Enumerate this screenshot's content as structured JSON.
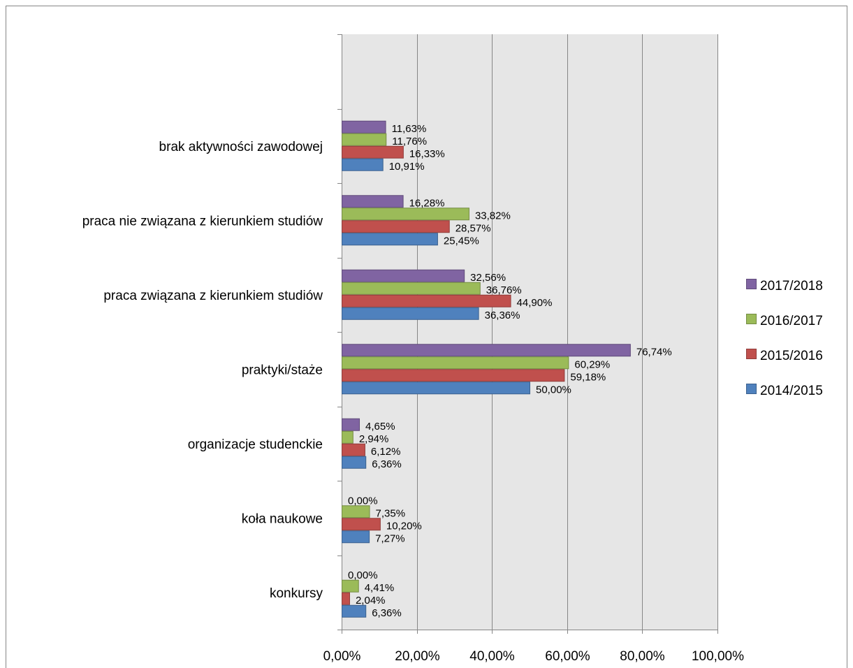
{
  "chart_data": {
    "type": "bar",
    "orientation": "horizontal",
    "categories": [
      "brak aktywności zawodowej",
      "praca nie związana z kierunkiem studiów",
      "praca związana z kierunkiem studiów",
      "praktyki/staże",
      "organizacje studenckie",
      "koła naukowe",
      "konkursy"
    ],
    "series": [
      {
        "name": "2017/2018",
        "color": "#8064a2",
        "values": [
          11.63,
          16.28,
          32.56,
          76.74,
          4.65,
          0.0,
          0.0
        ],
        "labels": [
          "11,63%",
          "16,28%",
          "32,56%",
          "76,74%",
          "4,65%",
          "0,00%",
          "0,00%"
        ]
      },
      {
        "name": "2016/2017",
        "color": "#9bbb59",
        "values": [
          11.76,
          33.82,
          36.76,
          60.29,
          2.94,
          7.35,
          4.41
        ],
        "labels": [
          "11,76%",
          "33,82%",
          "36,76%",
          "60,29%",
          "2,94%",
          "7,35%",
          "4,41%"
        ]
      },
      {
        "name": "2015/2016",
        "color": "#c0504d",
        "values": [
          16.33,
          28.57,
          44.9,
          59.18,
          6.12,
          10.2,
          2.04
        ],
        "labels": [
          "16,33%",
          "28,57%",
          "44,90%",
          "59,18%",
          "6,12%",
          "10,20%",
          "2,04%"
        ]
      },
      {
        "name": "2014/2015",
        "color": "#4f81bd",
        "values": [
          10.91,
          25.45,
          36.36,
          50.0,
          6.36,
          7.27,
          6.36
        ],
        "labels": [
          "10,91%",
          "25,45%",
          "36,36%",
          "50,00%",
          "6,36%",
          "7,27%",
          "6,36%"
        ]
      }
    ],
    "xlim": [
      0,
      100
    ],
    "xticks": [
      0,
      20,
      40,
      60,
      80,
      100
    ],
    "xtick_labels": [
      "0,00%",
      "20,00%",
      "40,00%",
      "60,00%",
      "80,00%",
      "100,00%"
    ],
    "title": "",
    "xlabel": "",
    "ylabel": "",
    "grid": true,
    "legend_position": "right",
    "legend_order": [
      "2017/2018",
      "2016/2017",
      "2015/2016",
      "2014/2015"
    ],
    "plot_background": "#e6e6e6"
  }
}
